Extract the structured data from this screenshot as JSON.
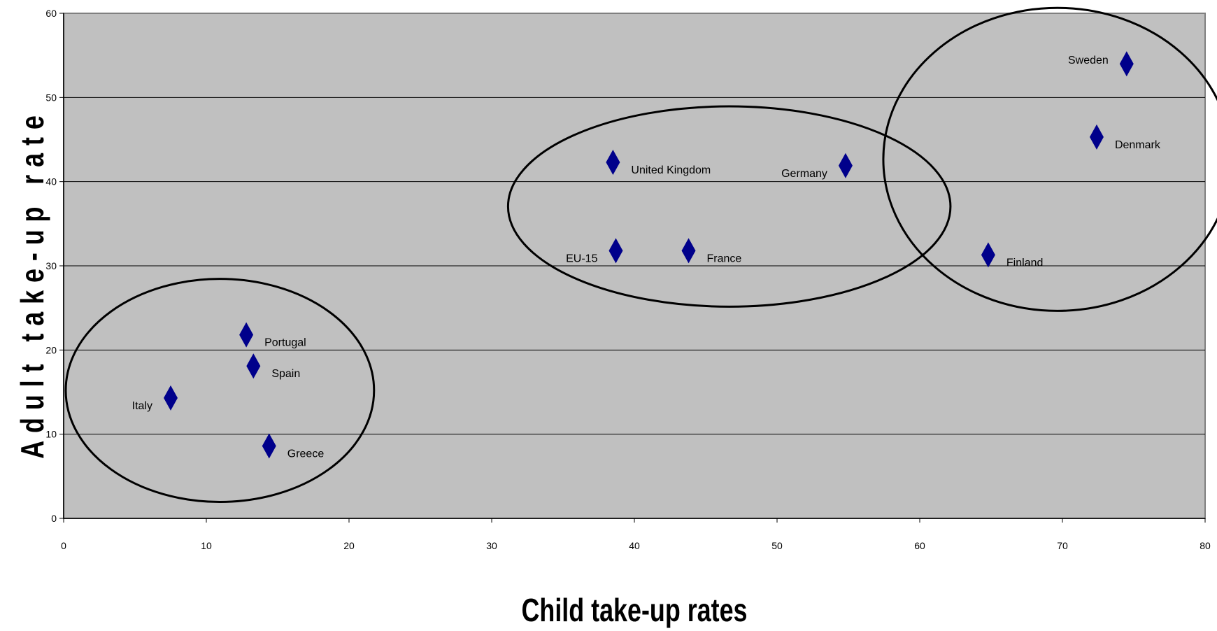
{
  "chart_data": {
    "type": "scatter",
    "xlabel": "Child take-up rates",
    "ylabel": "Adult take-up rate",
    "xlim": [
      0,
      80
    ],
    "ylim": [
      0,
      60
    ],
    "xticks": [
      0,
      10,
      20,
      30,
      40,
      50,
      60,
      70,
      80
    ],
    "yticks": [
      0,
      10,
      20,
      30,
      40,
      50,
      60
    ],
    "grid": "horizontal",
    "colors": {
      "plot_background": "#c0c0c0",
      "marker": "#00008b",
      "gridline": "#000000",
      "ellipse": "#000000"
    },
    "marker": "diamond",
    "points": [
      {
        "label": "Italy",
        "x": 7.5,
        "y": 14.3
      },
      {
        "label": "Portugal",
        "x": 12.8,
        "y": 21.8
      },
      {
        "label": "Spain",
        "x": 13.3,
        "y": 18.1
      },
      {
        "label": "Greece",
        "x": 14.4,
        "y": 8.6
      },
      {
        "label": "United Kingdom",
        "x": 38.5,
        "y": 42.3
      },
      {
        "label": "EU-15",
        "x": 38.7,
        "y": 31.8
      },
      {
        "label": "France",
        "x": 43.8,
        "y": 31.8
      },
      {
        "label": "Germany",
        "x": 54.8,
        "y": 41.9
      },
      {
        "label": "Finland",
        "x": 64.8,
        "y": 31.3
      },
      {
        "label": "Sweden",
        "x": 74.5,
        "y": 54.0
      },
      {
        "label": "Denmark",
        "x": 72.4,
        "y": 45.3
      }
    ],
    "annotations": [
      {
        "shape": "ellipse",
        "encloses": [
          "Italy",
          "Portugal",
          "Spain",
          "Greece"
        ]
      },
      {
        "shape": "ellipse",
        "encloses": [
          "United Kingdom",
          "EU-15",
          "France",
          "Germany"
        ]
      },
      {
        "shape": "ellipse",
        "encloses": [
          "Finland",
          "Sweden",
          "Denmark"
        ]
      }
    ]
  }
}
